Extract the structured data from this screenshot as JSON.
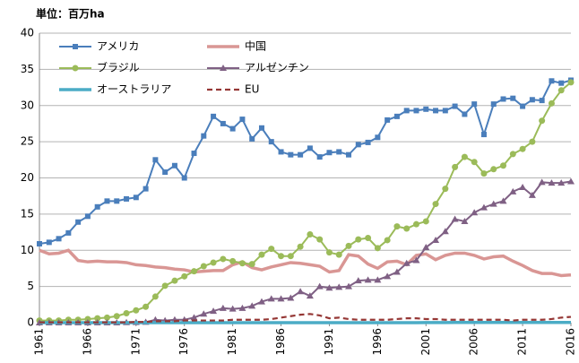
{
  "chart_data": {
    "type": "line",
    "y_label": "単位：百万ha",
    "x": [
      1961,
      1962,
      1963,
      1964,
      1965,
      1966,
      1967,
      1968,
      1969,
      1970,
      1971,
      1972,
      1973,
      1974,
      1975,
      1976,
      1977,
      1978,
      1979,
      1980,
      1981,
      1982,
      1983,
      1984,
      1985,
      1986,
      1987,
      1988,
      1989,
      1990,
      1991,
      1992,
      1993,
      1994,
      1995,
      1996,
      1997,
      1998,
      1999,
      2000,
      2001,
      2002,
      2003,
      2004,
      2005,
      2006,
      2007,
      2008,
      2009,
      2010,
      2011,
      2012,
      2013,
      2014,
      2015,
      2016
    ],
    "xlim": [
      1961,
      2016
    ],
    "xticks": [
      1961,
      1966,
      1971,
      1976,
      1981,
      1986,
      1991,
      1996,
      2001,
      2006,
      2011,
      2016
    ],
    "ylim": [
      0,
      40
    ],
    "yticks": [
      0,
      5,
      10,
      15,
      20,
      25,
      30,
      35,
      40
    ],
    "grid": true,
    "legend_position": "upper left",
    "series": [
      {
        "name": "アメリカ",
        "color": "#4a7ebb",
        "marker": "square",
        "linestyle": "solid",
        "values": [
          10.9,
          11.1,
          11.6,
          12.4,
          13.9,
          14.7,
          16.0,
          16.8,
          16.8,
          17.1,
          17.3,
          18.5,
          22.5,
          20.8,
          21.7,
          20.0,
          23.4,
          25.8,
          28.5,
          27.5,
          26.8,
          28.1,
          25.4,
          26.9,
          25.0,
          23.6,
          23.2,
          23.2,
          24.1,
          22.9,
          23.5,
          23.6,
          23.2,
          24.6,
          24.9,
          25.6,
          28.0,
          28.5,
          29.3,
          29.3,
          29.5,
          29.3,
          29.3,
          29.9,
          28.8,
          30.2,
          26.0,
          30.2,
          30.9,
          31.0,
          29.9,
          30.8,
          30.7,
          33.4,
          33.1,
          33.5
        ]
      },
      {
        "name": "中国",
        "color": "#d99694",
        "marker": null,
        "linestyle": "solid",
        "values": [
          10.0,
          9.5,
          9.6,
          10.0,
          8.6,
          8.4,
          8.5,
          8.4,
          8.4,
          8.3,
          8.0,
          7.9,
          7.7,
          7.6,
          7.4,
          7.3,
          7.0,
          7.1,
          7.2,
          7.2,
          8.0,
          8.4,
          7.6,
          7.3,
          7.7,
          8.0,
          8.3,
          8.2,
          8.0,
          7.8,
          7.0,
          7.2,
          9.4,
          9.2,
          8.1,
          7.5,
          8.4,
          8.5,
          8.0,
          9.3,
          9.5,
          8.7,
          9.3,
          9.6,
          9.6,
          9.3,
          8.8,
          9.1,
          9.2,
          8.5,
          7.9,
          7.2,
          6.8,
          6.8,
          6.5,
          6.6
        ]
      },
      {
        "name": "ブラジル",
        "color": "#9bbb59",
        "marker": "circle",
        "linestyle": "solid",
        "values": [
          0.3,
          0.3,
          0.3,
          0.4,
          0.4,
          0.5,
          0.6,
          0.7,
          0.9,
          1.3,
          1.7,
          2.2,
          3.6,
          5.1,
          5.8,
          6.4,
          7.1,
          7.8,
          8.3,
          8.8,
          8.5,
          8.2,
          8.1,
          9.4,
          10.2,
          9.2,
          9.2,
          10.5,
          12.2,
          11.5,
          9.7,
          9.4,
          10.6,
          11.5,
          11.7,
          10.3,
          11.4,
          13.3,
          13.0,
          13.6,
          14.0,
          16.4,
          18.5,
          21.5,
          22.9,
          22.2,
          20.6,
          21.2,
          21.7,
          23.3,
          24.0,
          25.0,
          27.9,
          30.3,
          32.1,
          33.2
        ]
      },
      {
        "name": "アルゼンチン",
        "color": "#7f6084",
        "marker": "triangle",
        "linestyle": "solid",
        "values": [
          0,
          0,
          0,
          0,
          0,
          0,
          0,
          0,
          0,
          0.03,
          0.04,
          0.07,
          0.4,
          0.3,
          0.4,
          0.4,
          0.7,
          1.2,
          1.6,
          2.0,
          1.9,
          2.0,
          2.3,
          2.9,
          3.3,
          3.3,
          3.4,
          4.3,
          3.7,
          5.0,
          4.8,
          4.9,
          5.0,
          5.8,
          5.9,
          5.9,
          6.4,
          7.0,
          8.2,
          8.6,
          10.4,
          11.4,
          12.6,
          14.3,
          14.0,
          15.2,
          15.9,
          16.4,
          16.8,
          18.1,
          18.7,
          17.6,
          19.4,
          19.3,
          19.3,
          19.5
        ]
      },
      {
        "name": "オーストラリア",
        "color": "#4bacc6",
        "marker": null,
        "linestyle": "solid",
        "values": [
          0,
          0,
          0,
          0,
          0,
          0,
          0,
          0,
          0,
          0,
          0,
          0,
          0,
          0,
          0,
          0,
          0,
          0,
          0,
          0,
          0,
          0,
          0,
          0,
          0,
          0,
          0,
          0,
          0,
          0,
          0,
          0,
          0,
          0,
          0,
          0,
          0,
          0,
          0,
          0,
          0.02,
          0.02,
          0.02,
          0.03,
          0.03,
          0.03,
          0.03,
          0.03,
          0.03,
          0.03,
          0.03,
          0.03,
          0.03,
          0.03,
          0.03,
          0.03
        ]
      },
      {
        "name": "EU",
        "color": "#953735",
        "marker": null,
        "linestyle": "dashed",
        "values": [
          0.05,
          0.05,
          0.05,
          0.05,
          0.05,
          0.05,
          0.05,
          0.05,
          0.05,
          0.05,
          0.1,
          0.1,
          0.2,
          0.2,
          0.2,
          0.3,
          0.3,
          0.3,
          0.3,
          0.3,
          0.4,
          0.4,
          0.4,
          0.4,
          0.5,
          0.7,
          0.9,
          1.1,
          1.2,
          1.0,
          0.6,
          0.7,
          0.5,
          0.4,
          0.4,
          0.4,
          0.4,
          0.5,
          0.6,
          0.6,
          0.5,
          0.5,
          0.4,
          0.4,
          0.4,
          0.4,
          0.4,
          0.4,
          0.4,
          0.3,
          0.4,
          0.4,
          0.4,
          0.5,
          0.7,
          0.8
        ]
      }
    ]
  }
}
